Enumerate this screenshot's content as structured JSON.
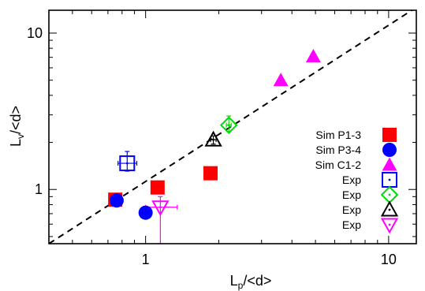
{
  "chart_data": {
    "type": "scatter",
    "title": "",
    "xlabel": {
      "main": "L",
      "sub": "p",
      "tail": "/<d>"
    },
    "ylabel": {
      "main": "L",
      "sub": "v",
      "tail": "/<d>"
    },
    "xscale": "log",
    "yscale": "log",
    "xlim": [
      0.4,
      13
    ],
    "ylim": [
      0.45,
      14
    ],
    "x_tick_labels": [
      {
        "value": 1,
        "label": "1"
      },
      {
        "value": 10,
        "label": "10"
      }
    ],
    "y_tick_labels": [
      {
        "value": 1,
        "label": "1"
      },
      {
        "value": 10,
        "label": "10"
      }
    ],
    "grid": false,
    "legend_position": "right",
    "reference_line": {
      "style": "dashed",
      "color": "#000000",
      "slope": 1,
      "x": [
        0.4,
        13
      ],
      "y": [
        0.45,
        14.6
      ]
    },
    "series": [
      {
        "name": "Sim P1-3",
        "marker": "square-filled",
        "color": "#ff0000",
        "points": [
          {
            "x": 0.75,
            "y": 0.86
          },
          {
            "x": 1.12,
            "y": 1.03
          },
          {
            "x": 1.85,
            "y": 1.27
          }
        ]
      },
      {
        "name": "Sim P3-4",
        "marker": "circle-filled",
        "color": "#0000ff",
        "points": [
          {
            "x": 0.76,
            "y": 0.85
          },
          {
            "x": 1.0,
            "y": 0.71
          }
        ]
      },
      {
        "name": "Sim C1-2",
        "marker": "triangle-up-filled",
        "color": "#ff00ff",
        "points": [
          {
            "x": 3.6,
            "y": 5.0
          },
          {
            "x": 4.9,
            "y": 7.1
          }
        ]
      },
      {
        "name": "Exp",
        "marker": "square-open",
        "color": "#0000ff",
        "points": [
          {
            "x": 0.84,
            "y": 1.47,
            "xerr": [
              0.77,
              0.92
            ],
            "yerr": [
              1.31,
              1.75
            ]
          }
        ]
      },
      {
        "name": "Exp",
        "marker": "diamond-open",
        "color": "#00dd00",
        "points": [
          {
            "x": 2.2,
            "y": 2.58,
            "xerr": [
              2.15,
              2.25
            ],
            "yerr": [
              2.35,
              2.95
            ]
          }
        ]
      },
      {
        "name": "Exp",
        "marker": "triangle-up-open",
        "color": "#000000",
        "points": [
          {
            "x": 1.9,
            "y": 2.08,
            "xerr": [
              1.85,
              1.95
            ],
            "yerr": [
              1.95,
              2.2
            ]
          }
        ]
      },
      {
        "name": "Exp",
        "marker": "triangle-down-open",
        "color": "#ff00ff",
        "points": [
          {
            "x": 1.15,
            "y": 0.77,
            "xerr": [
              1.0,
              1.35
            ],
            "yerr": [
              0.45,
              0.9
            ]
          }
        ]
      }
    ]
  }
}
